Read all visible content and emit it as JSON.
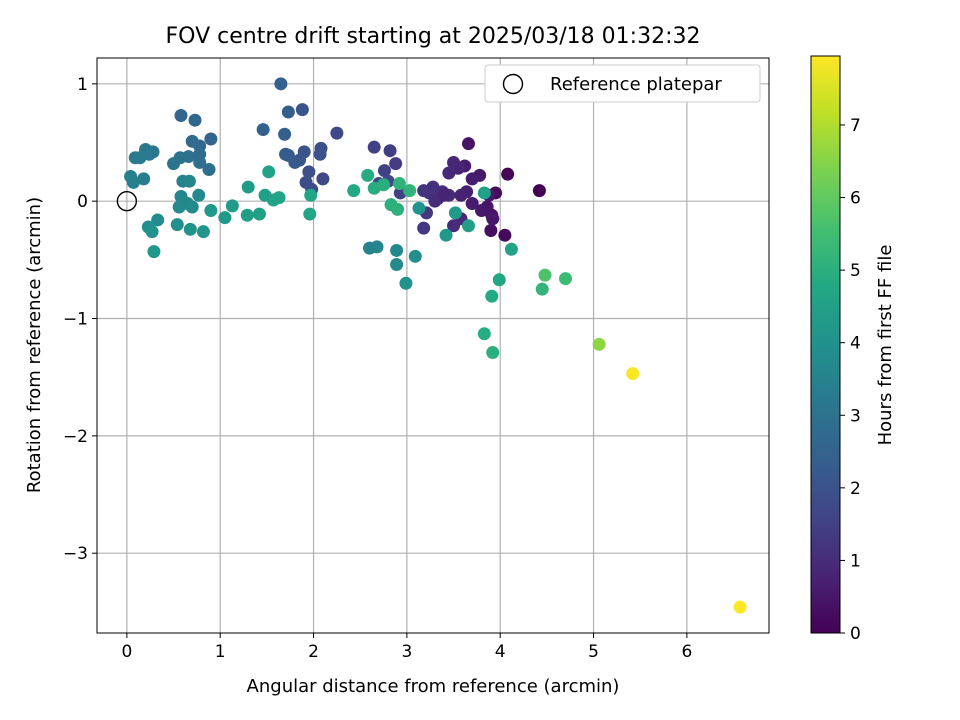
{
  "chart_data": {
    "type": "scatter",
    "title": "FOV centre drift starting at 2025/03/18 01:32:32",
    "xlabel": "Angular distance from reference (arcmin)",
    "ylabel": "Rotation from reference (arcmin)",
    "xlim": [
      -0.32,
      6.88
    ],
    "ylim": [
      -3.68,
      1.22
    ],
    "xticks": [
      0,
      1,
      2,
      3,
      4,
      5,
      6
    ],
    "xtick_labels": [
      "0",
      "1",
      "2",
      "3",
      "4",
      "5",
      "6"
    ],
    "yticks": [
      1,
      0,
      -1,
      -2,
      -3
    ],
    "ytick_labels": [
      "1",
      "0",
      "−1",
      "−2",
      "−3"
    ],
    "grid": true,
    "colorbar": {
      "label": "Hours from first FF file",
      "colormap": "viridis",
      "range": [
        0,
        7.95
      ],
      "ticks": [
        0,
        1,
        2,
        3,
        4,
        5,
        6,
        7
      ],
      "tick_labels": [
        "0",
        "1",
        "2",
        "3",
        "4",
        "5",
        "6",
        "7"
      ]
    },
    "legend": {
      "position": "top-right",
      "entries": [
        "Reference platepar"
      ]
    },
    "reference_point": {
      "x": 0,
      "y": 0
    },
    "points": [
      {
        "x": 4.42,
        "y": 0.09,
        "h": 0.0
      },
      {
        "x": 4.08,
        "y": 0.23,
        "h": 0.1
      },
      {
        "x": 4.05,
        "y": -0.29,
        "h": 0.15
      },
      {
        "x": 3.95,
        "y": 0.07,
        "h": 0.2
      },
      {
        "x": 3.9,
        "y": -0.25,
        "h": 0.3
      },
      {
        "x": 3.91,
        "y": -0.12,
        "h": 0.35
      },
      {
        "x": 3.86,
        "y": -0.05,
        "h": 0.45
      },
      {
        "x": 3.8,
        "y": -0.08,
        "h": 0.5
      },
      {
        "x": 3.78,
        "y": 0.22,
        "h": 0.55
      },
      {
        "x": 3.7,
        "y": 0.19,
        "h": 0.6
      },
      {
        "x": 3.66,
        "y": 0.49,
        "h": 0.4
      },
      {
        "x": 3.62,
        "y": 0.3,
        "h": 0.65
      },
      {
        "x": 3.64,
        "y": 0.08,
        "h": 0.7
      },
      {
        "x": 3.58,
        "y": 0.05,
        "h": 0.75
      },
      {
        "x": 3.55,
        "y": 0.28,
        "h": 0.8
      },
      {
        "x": 3.5,
        "y": 0.33,
        "h": 0.85
      },
      {
        "x": 3.45,
        "y": 0.24,
        "h": 0.9
      },
      {
        "x": 3.45,
        "y": 0.05,
        "h": 0.95
      },
      {
        "x": 3.38,
        "y": 0.08,
        "h": 1.0
      },
      {
        "x": 3.33,
        "y": 0.02,
        "h": 1.05
      },
      {
        "x": 3.28,
        "y": 0.12,
        "h": 1.1
      },
      {
        "x": 3.24,
        "y": 0.07,
        "h": 1.15
      },
      {
        "x": 3.18,
        "y": 0.09,
        "h": 1.2
      },
      {
        "x": 3.21,
        "y": -0.1,
        "h": 1.25
      },
      {
        "x": 3.18,
        "y": -0.23,
        "h": 1.3
      },
      {
        "x": 3.3,
        "y": 0.0,
        "h": 1.0
      },
      {
        "x": 3.7,
        "y": -0.02,
        "h": 0.6
      },
      {
        "x": 3.58,
        "y": -0.15,
        "h": 0.9
      },
      {
        "x": 3.5,
        "y": -0.21,
        "h": 1.0
      },
      {
        "x": 3.4,
        "y": 0.05,
        "h": 0.8
      },
      {
        "x": 3.92,
        "y": -0.15,
        "h": 0.5
      },
      {
        "x": 3.88,
        "y": 0.05,
        "h": 0.5
      },
      {
        "x": 2.88,
        "y": 0.32,
        "h": 1.4
      },
      {
        "x": 2.82,
        "y": 0.43,
        "h": 1.45
      },
      {
        "x": 2.65,
        "y": 0.46,
        "h": 1.5
      },
      {
        "x": 2.76,
        "y": 0.26,
        "h": 1.55
      },
      {
        "x": 2.7,
        "y": 0.15,
        "h": 1.6
      },
      {
        "x": 2.8,
        "y": 0.17,
        "h": 1.65
      },
      {
        "x": 2.93,
        "y": 0.07,
        "h": 1.5
      },
      {
        "x": 2.25,
        "y": 0.58,
        "h": 1.7
      },
      {
        "x": 2.1,
        "y": 0.19,
        "h": 1.75
      },
      {
        "x": 1.98,
        "y": 0.1,
        "h": 1.8
      },
      {
        "x": 1.92,
        "y": 0.16,
        "h": 1.85
      },
      {
        "x": 1.95,
        "y": 0.25,
        "h": 1.9
      },
      {
        "x": 2.08,
        "y": 0.45,
        "h": 1.95
      },
      {
        "x": 2.07,
        "y": 0.4,
        "h": 2.0
      },
      {
        "x": 1.9,
        "y": 0.42,
        "h": 2.05
      },
      {
        "x": 1.88,
        "y": 0.78,
        "h": 2.1
      },
      {
        "x": 1.85,
        "y": 0.35,
        "h": 2.15
      },
      {
        "x": 1.8,
        "y": 0.33,
        "h": 2.2
      },
      {
        "x": 1.73,
        "y": 0.39,
        "h": 2.25
      },
      {
        "x": 1.7,
        "y": 0.4,
        "h": 2.3
      },
      {
        "x": 1.73,
        "y": 0.76,
        "h": 2.35
      },
      {
        "x": 1.69,
        "y": 0.57,
        "h": 2.4
      },
      {
        "x": 1.65,
        "y": 1.0,
        "h": 2.45
      },
      {
        "x": 1.46,
        "y": 0.61,
        "h": 2.5
      },
      {
        "x": 0.9,
        "y": 0.53,
        "h": 2.55
      },
      {
        "x": 0.58,
        "y": 0.73,
        "h": 2.6
      },
      {
        "x": 0.73,
        "y": 0.69,
        "h": 2.65
      },
      {
        "x": 0.78,
        "y": 0.47,
        "h": 2.7
      },
      {
        "x": 0.7,
        "y": 0.51,
        "h": 2.75
      },
      {
        "x": 0.78,
        "y": 0.4,
        "h": 2.8
      },
      {
        "x": 0.78,
        "y": 0.33,
        "h": 2.85
      },
      {
        "x": 0.88,
        "y": 0.27,
        "h": 2.9
      },
      {
        "x": 0.66,
        "y": 0.38,
        "h": 2.95
      },
      {
        "x": 0.57,
        "y": 0.37,
        "h": 3.0
      },
      {
        "x": 0.5,
        "y": 0.32,
        "h": 3.05
      },
      {
        "x": 0.28,
        "y": 0.42,
        "h": 3.1
      },
      {
        "x": 0.2,
        "y": 0.44,
        "h": 3.15
      },
      {
        "x": 0.24,
        "y": 0.4,
        "h": 3.2
      },
      {
        "x": 0.09,
        "y": 0.37,
        "h": 3.25
      },
      {
        "x": 0.14,
        "y": 0.37,
        "h": 3.3
      },
      {
        "x": 0.18,
        "y": 0.19,
        "h": 3.35
      },
      {
        "x": 0.04,
        "y": 0.21,
        "h": 3.4
      },
      {
        "x": 0.07,
        "y": 0.16,
        "h": 3.45
      },
      {
        "x": 0.6,
        "y": 0.17,
        "h": 3.5
      },
      {
        "x": 0.67,
        "y": 0.17,
        "h": 3.55
      },
      {
        "x": 0.58,
        "y": 0.04,
        "h": 3.6
      },
      {
        "x": 0.65,
        "y": -0.02,
        "h": 3.65
      },
      {
        "x": 0.77,
        "y": 0.05,
        "h": 3.7
      },
      {
        "x": 0.56,
        "y": -0.05,
        "h": 3.75
      },
      {
        "x": 0.7,
        "y": -0.05,
        "h": 3.8
      },
      {
        "x": 0.33,
        "y": -0.16,
        "h": 3.85
      },
      {
        "x": 0.54,
        "y": -0.2,
        "h": 3.9
      },
      {
        "x": 0.23,
        "y": -0.22,
        "h": 3.95
      },
      {
        "x": 0.27,
        "y": -0.26,
        "h": 4.0
      },
      {
        "x": 0.68,
        "y": -0.24,
        "h": 4.05
      },
      {
        "x": 0.82,
        "y": -0.26,
        "h": 4.1
      },
      {
        "x": 0.29,
        "y": -0.43,
        "h": 4.15
      },
      {
        "x": 0.9,
        "y": -0.08,
        "h": 4.2
      },
      {
        "x": 1.05,
        "y": -0.14,
        "h": 4.25
      },
      {
        "x": 1.13,
        "y": -0.04,
        "h": 4.3
      },
      {
        "x": 1.3,
        "y": 0.12,
        "h": 4.35
      },
      {
        "x": 1.29,
        "y": -0.12,
        "h": 4.4
      },
      {
        "x": 1.42,
        "y": -0.11,
        "h": 4.45
      },
      {
        "x": 1.48,
        "y": 0.05,
        "h": 4.5
      },
      {
        "x": 1.52,
        "y": 0.25,
        "h": 4.55
      },
      {
        "x": 1.57,
        "y": 0.01,
        "h": 4.6
      },
      {
        "x": 1.63,
        "y": 0.03,
        "h": 4.65
      },
      {
        "x": 1.96,
        "y": -0.11,
        "h": 4.7
      },
      {
        "x": 1.97,
        "y": 0.05,
        "h": 4.75
      },
      {
        "x": 2.43,
        "y": 0.09,
        "h": 4.8
      },
      {
        "x": 2.58,
        "y": 0.22,
        "h": 4.85
      },
      {
        "x": 2.65,
        "y": 0.11,
        "h": 4.9
      },
      {
        "x": 2.75,
        "y": 0.14,
        "h": 4.95
      },
      {
        "x": 2.83,
        "y": -0.03,
        "h": 5.0
      },
      {
        "x": 2.9,
        "y": -0.07,
        "h": 5.05
      },
      {
        "x": 2.92,
        "y": 0.15,
        "h": 5.1
      },
      {
        "x": 3.03,
        "y": 0.09,
        "h": 5.15
      },
      {
        "x": 2.6,
        "y": -0.4,
        "h": 3.5
      },
      {
        "x": 2.68,
        "y": -0.39,
        "h": 3.6
      },
      {
        "x": 2.89,
        "y": -0.42,
        "h": 3.7
      },
      {
        "x": 2.89,
        "y": -0.54,
        "h": 3.8
      },
      {
        "x": 3.09,
        "y": -0.47,
        "h": 3.9
      },
      {
        "x": 2.99,
        "y": -0.7,
        "h": 4.0
      },
      {
        "x": 3.13,
        "y": -0.06,
        "h": 4.1
      },
      {
        "x": 3.42,
        "y": -0.29,
        "h": 4.2
      },
      {
        "x": 3.52,
        "y": -0.1,
        "h": 4.3
      },
      {
        "x": 3.66,
        "y": -0.21,
        "h": 4.4
      },
      {
        "x": 3.83,
        "y": 0.07,
        "h": 4.5
      },
      {
        "x": 4.12,
        "y": -0.41,
        "h": 4.6
      },
      {
        "x": 3.99,
        "y": -0.67,
        "h": 4.7
      },
      {
        "x": 3.91,
        "y": -0.81,
        "h": 4.8
      },
      {
        "x": 3.83,
        "y": -1.13,
        "h": 4.9
      },
      {
        "x": 3.92,
        "y": -1.29,
        "h": 5.0
      },
      {
        "x": 4.45,
        "y": -0.75,
        "h": 5.2
      },
      {
        "x": 4.7,
        "y": -0.66,
        "h": 5.4
      },
      {
        "x": 4.48,
        "y": -0.63,
        "h": 5.7
      },
      {
        "x": 5.06,
        "y": -1.22,
        "h": 6.6
      },
      {
        "x": 5.42,
        "y": -1.47,
        "h": 7.9
      },
      {
        "x": 6.57,
        "y": -3.46,
        "h": 7.95
      }
    ]
  }
}
